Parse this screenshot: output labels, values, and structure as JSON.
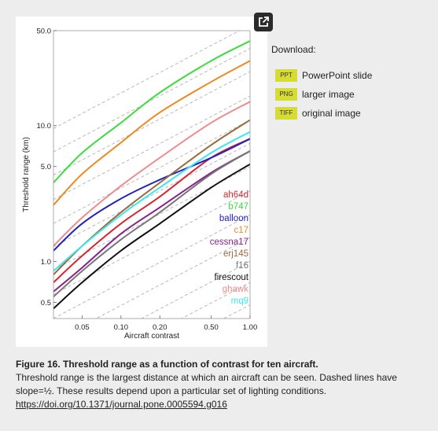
{
  "expand_icon": "external-link-icon",
  "download": {
    "title": "Download:",
    "items": [
      {
        "badge": "PPT",
        "label": "PowerPoint slide"
      },
      {
        "badge": "PNG",
        "label": "larger image"
      },
      {
        "badge": "TIFF",
        "label": "original image"
      }
    ]
  },
  "caption": {
    "title": "Figure 16. Threshold range as a function of contrast for ten aircraft.",
    "text": "Threshold range is the largest distance at which an aircraft can be seen. Dashed lines have slope=½. These results depend upon a particular set of lighting conditions.",
    "link": "https://doi.org/10.1371/journal.pone.0005594.g016"
  },
  "chart_data": {
    "type": "line",
    "xlabel": "Aircraft contrast",
    "ylabel": "Threshold range (km)",
    "xscale": "log",
    "yscale": "log",
    "xlim": [
      0.03,
      1.0
    ],
    "ylim": [
      0.38,
      50.0
    ],
    "xticks": [
      0.05,
      0.1,
      0.2,
      0.5,
      1.0
    ],
    "xtick_labels": [
      "0.05",
      "0.10",
      "0.20",
      "0.50",
      "1.00"
    ],
    "yticks": [
      0.5,
      1.0,
      5.0,
      10.0,
      50.0
    ],
    "ytick_labels": [
      "0.5",
      "1.0",
      "5.0",
      "10.0",
      "50.0"
    ],
    "grid": false,
    "legend_position": "bottom-right",
    "x": [
      0.03,
      0.05,
      0.1,
      0.2,
      0.5,
      1.0
    ],
    "reference_lines": {
      "style": "dashed",
      "slope": 0.5,
      "color": "#b8b8b8",
      "intercepts_at_x1": [
        0.33,
        0.48,
        0.7,
        1.0,
        1.5,
        2.2,
        3.3,
        5.0,
        7.4,
        11,
        16.5,
        25,
        37,
        55
      ]
    },
    "series": [
      {
        "name": "ah64d",
        "color": "#d8262e",
        "values": [
          0.7,
          1.1,
          1.9,
          3.0,
          5.8,
          8.0
        ]
      },
      {
        "name": "b747",
        "color": "#3ddc3d",
        "values": [
          3.8,
          6.3,
          10.5,
          17.5,
          30.0,
          42.0
        ]
      },
      {
        "name": "balloon",
        "color": "#2222bb",
        "values": [
          1.2,
          1.9,
          2.9,
          4.0,
          5.8,
          8.0
        ]
      },
      {
        "name": "c17",
        "color": "#ee8a22",
        "values": [
          2.6,
          4.4,
          7.5,
          12.5,
          21.0,
          30.0
        ]
      },
      {
        "name": "cessna17",
        "color": "#8a1f8e",
        "values": [
          0.6,
          0.9,
          1.6,
          2.5,
          4.5,
          6.5
        ]
      },
      {
        "name": "erj145",
        "color": "#9b6a3c",
        "values": [
          0.8,
          1.3,
          2.3,
          3.8,
          7.2,
          11.0
        ]
      },
      {
        "name": "f16",
        "color": "#777777",
        "values": [
          0.55,
          0.85,
          1.45,
          2.3,
          4.4,
          6.5
        ]
      },
      {
        "name": "firescout",
        "color": "#111111",
        "values": [
          0.45,
          0.7,
          1.2,
          1.9,
          3.5,
          5.2
        ]
      },
      {
        "name": "ghawk",
        "color": "#ee8c8c",
        "values": [
          1.3,
          2.1,
          3.6,
          5.8,
          10.5,
          15.0
        ]
      },
      {
        "name": "mq9",
        "color": "#3ee6ee",
        "values": [
          0.85,
          1.3,
          2.2,
          3.5,
          6.3,
          9.0
        ]
      }
    ]
  }
}
